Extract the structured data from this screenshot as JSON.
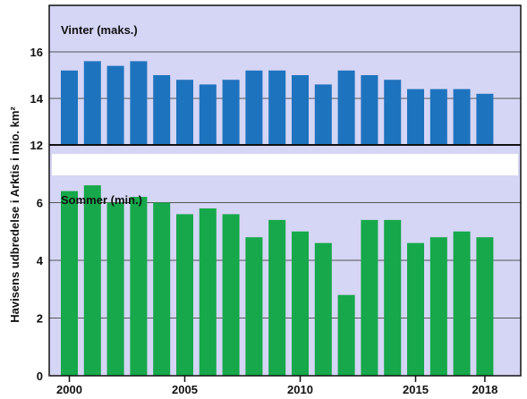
{
  "chart_data": [
    {
      "type": "bar",
      "panel_label": "Vinter (maks.)",
      "color": "#1e73be",
      "background": "#d5d5f5",
      "x": [
        2000,
        2001,
        2002,
        2003,
        2004,
        2005,
        2006,
        2007,
        2008,
        2009,
        2010,
        2011,
        2012,
        2013,
        2014,
        2015,
        2016,
        2017,
        2018
      ],
      "values": [
        15.2,
        15.6,
        15.4,
        15.6,
        15.0,
        14.8,
        14.6,
        14.8,
        15.2,
        15.2,
        15.0,
        14.6,
        15.2,
        15.0,
        14.8,
        14.4,
        14.4,
        14.4,
        14.2
      ],
      "ylim": [
        12,
        18
      ],
      "yticks": [
        "12",
        "14",
        "16"
      ],
      "grid": true
    },
    {
      "type": "bar",
      "panel_label": "Sommer (min.)",
      "color": "#16a84a",
      "background": "#d5d5f5",
      "x": [
        2000,
        2001,
        2002,
        2003,
        2004,
        2005,
        2006,
        2007,
        2008,
        2009,
        2010,
        2011,
        2012,
        2013,
        2014,
        2015,
        2016,
        2017,
        2018
      ],
      "values": [
        6.4,
        6.6,
        6.0,
        6.2,
        6.0,
        5.6,
        5.8,
        5.6,
        4.8,
        5.4,
        5.0,
        4.6,
        2.8,
        5.4,
        5.4,
        4.6,
        4.8,
        5.0,
        4.8
      ],
      "ylim": [
        0,
        8
      ],
      "yticks": [
        "0",
        "2",
        "4",
        "6"
      ],
      "grid": true
    }
  ],
  "ylabel": "Havisens udbredelse i Arktis i mio. km²",
  "xticks": [
    "2000",
    "2005",
    "2010",
    "2015",
    "2018"
  ],
  "xtick_values": [
    2000,
    2005,
    2010,
    2015,
    2018
  ]
}
